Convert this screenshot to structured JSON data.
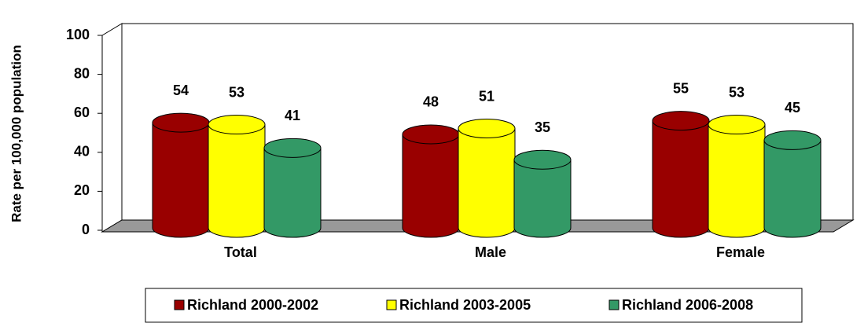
{
  "chart_data": {
    "type": "bar",
    "y_label": "Rate per 100,000 population",
    "categories": [
      "Total",
      "Male",
      "Female"
    ],
    "series": [
      {
        "name": "Richland 2000-2002",
        "color": "#990000",
        "values": [
          54,
          48,
          55
        ]
      },
      {
        "name": "Richland 2003-2005",
        "color": "#FFFF00",
        "values": [
          53,
          51,
          53
        ]
      },
      {
        "name": "Richland 2006-2008",
        "color": "#339966",
        "values": [
          41,
          35,
          45
        ]
      }
    ],
    "ylim": [
      0,
      100
    ],
    "yticks": [
      0,
      20,
      40,
      60,
      80,
      100
    ],
    "grid": false,
    "legend": "bottom"
  }
}
